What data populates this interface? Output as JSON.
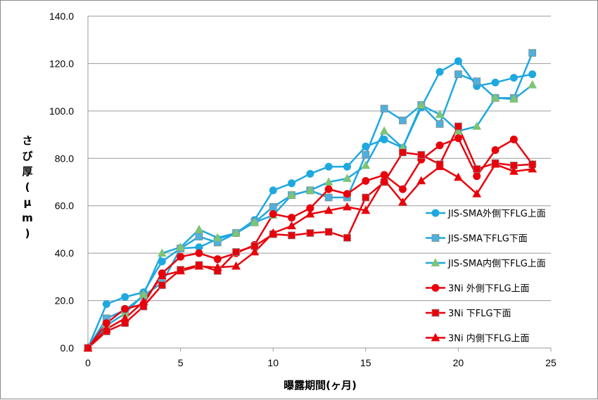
{
  "chart_data": {
    "type": "line",
    "xlabel": "曝露期間(ヶ月)",
    "ylabel": "さび厚(μm)",
    "xlim": [
      0,
      25
    ],
    "ylim": [
      0,
      140
    ],
    "xticks": [
      0,
      5,
      10,
      15,
      20,
      25
    ],
    "yticks": [
      0,
      20,
      40,
      60,
      80,
      100,
      120,
      140
    ],
    "xtick_labels": [
      "0",
      "5",
      "10",
      "15",
      "20",
      "25"
    ],
    "ytick_labels": [
      "0.0",
      "20.0",
      "40.0",
      "60.0",
      "80.0",
      "100.0",
      "120.0",
      "140.0"
    ],
    "grid": "horizontal",
    "legend": "right",
    "x": [
      0,
      1,
      2,
      3,
      4,
      5,
      6,
      7,
      8,
      9,
      10,
      11,
      12,
      13,
      14,
      15,
      16,
      17,
      18,
      19,
      20,
      21,
      22,
      23,
      24
    ],
    "series": [
      {
        "name": "JIS-SMA外側下FLG上面",
        "color": "#1fa8e0",
        "marker": "circle",
        "values": [
          0,
          18.5,
          21.5,
          23.5,
          36.5,
          42.0,
          42.5,
          46.0,
          48.5,
          54.0,
          66.5,
          69.5,
          73.5,
          76.5,
          76.5,
          85.0,
          88.0,
          84.5,
          101.5,
          116.5,
          121.0,
          110.5,
          112.0,
          114.0,
          115.5
        ]
      },
      {
        "name": "JIS-SMA下FLG下面",
        "color": "#1fa8e0",
        "marker": "square",
        "values": [
          0,
          12.5,
          16.0,
          22.0,
          27.5,
          42.0,
          47.0,
          44.5,
          48.5,
          53.0,
          59.5,
          64.5,
          66.5,
          63.5,
          63.5,
          81.5,
          101.0,
          96.0,
          102.5,
          94.5,
          115.5,
          112.5,
          105.5,
          105.5,
          124.5
        ]
      },
      {
        "name": "JIS-SMA内側下FLG上面",
        "color": "#1fa8e0",
        "marker": "triangle",
        "values": [
          0,
          9.5,
          14.5,
          22.5,
          40.0,
          42.5,
          50.0,
          46.5,
          48.5,
          53.0,
          56.0,
          64.5,
          66.5,
          70.0,
          71.5,
          77.0,
          91.5,
          84.5,
          102.5,
          98.5,
          91.5,
          93.5,
          105.5,
          105.0,
          111.0
        ]
      },
      {
        "name": "3Ni 外側下FLG上面",
        "color": "#e8000b",
        "marker": "circle",
        "values": [
          0,
          10.5,
          16.5,
          18.5,
          31.5,
          38.5,
          40.0,
          37.5,
          40.0,
          43.5,
          56.5,
          55.0,
          59.0,
          67.0,
          65.0,
          70.5,
          73.0,
          67.0,
          79.5,
          85.5,
          88.5,
          72.5,
          83.5,
          88.0,
          77.5
        ]
      },
      {
        "name": "3Ni 下FLG下面",
        "color": "#e8000b",
        "marker": "square",
        "values": [
          0,
          7.0,
          10.5,
          17.5,
          26.5,
          33.0,
          35.0,
          32.5,
          40.5,
          43.0,
          48.0,
          47.5,
          48.5,
          49.0,
          46.5,
          63.5,
          70.0,
          82.5,
          81.5,
          77.5,
          93.5,
          75.5,
          78.0,
          77.0,
          77.5
        ]
      },
      {
        "name": "3Ni 内側下FLG上面",
        "color": "#e8000b",
        "marker": "triangle",
        "values": [
          0,
          8.0,
          12.5,
          19.5,
          30.5,
          32.5,
          34.5,
          34.0,
          34.5,
          40.5,
          48.5,
          51.5,
          56.5,
          58.0,
          59.5,
          58.0,
          71.0,
          61.5,
          70.5,
          76.5,
          72.0,
          65.0,
          77.5,
          74.5,
          75.5
        ]
      }
    ]
  }
}
